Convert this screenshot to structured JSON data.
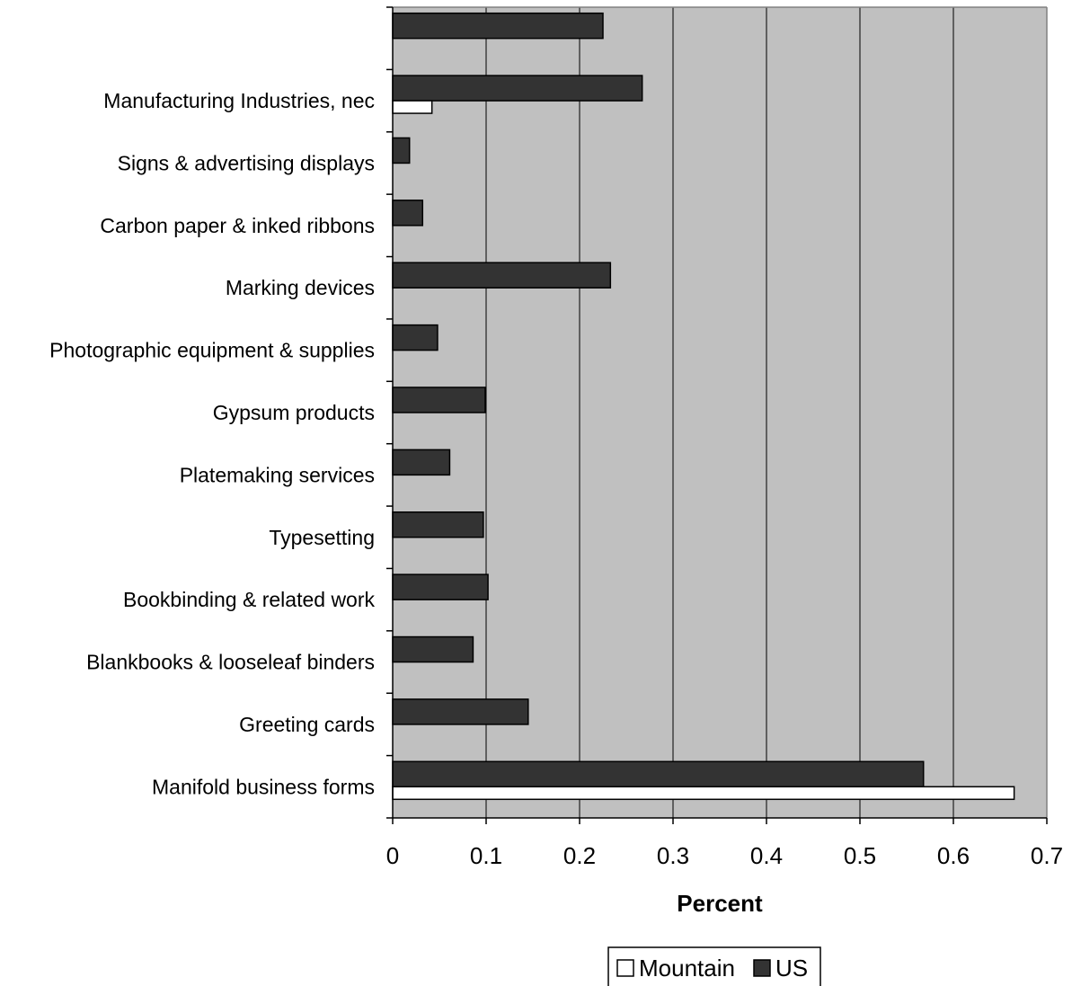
{
  "chart_data": {
    "type": "bar",
    "orientation": "horizontal",
    "title": "",
    "xlabel": "Percent",
    "ylabel": "",
    "xlim": [
      0,
      0.7
    ],
    "x_ticks": [
      0,
      0.1,
      0.2,
      0.3,
      0.4,
      0.5,
      0.6,
      0.7
    ],
    "x_tick_labels": [
      "0",
      "0.1",
      "0.2",
      "0.3",
      "0.4",
      "0.5",
      "0.6",
      "0.7"
    ],
    "grid": "vertical",
    "plot_background": "#c0c0c0",
    "legend_position": "bottom",
    "categories": [
      "",
      "Manufacturing Industries, nec",
      "Signs & advertising displays",
      "Carbon paper & inked ribbons",
      "Marking devices",
      "Photographic equipment & supplies",
      "Gypsum products",
      "Platemaking services",
      "Typesetting",
      "Bookbinding & related work",
      "Blankbooks & looseleaf binders",
      "Greeting cards",
      "Manifold business forms"
    ],
    "series": [
      {
        "name": "Mountain",
        "color": "#ffffff",
        "values": [
          0,
          0.042,
          0,
          0,
          0,
          0,
          0,
          0,
          0,
          0,
          0,
          0,
          0.665
        ]
      },
      {
        "name": "US",
        "color": "#333333",
        "values": [
          0.225,
          0.267,
          0.018,
          0.032,
          0.233,
          0.048,
          0.099,
          0.061,
          0.097,
          0.102,
          0.086,
          0.145,
          0.568
        ]
      }
    ]
  }
}
